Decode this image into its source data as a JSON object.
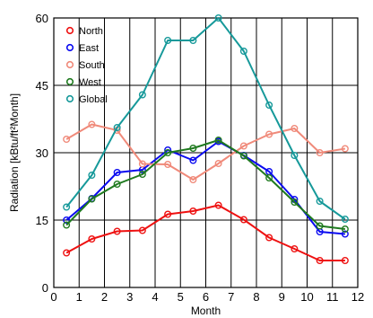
{
  "chart_data": {
    "type": "line",
    "xlabel": "Month",
    "ylabel": "Radiation [kBtu/ft²Month]",
    "xlim": [
      0,
      12
    ],
    "ylim": [
      0,
      60
    ],
    "xticks": [
      0,
      1,
      2,
      3,
      4,
      5,
      6,
      7,
      8,
      9,
      10,
      11,
      12
    ],
    "yticks": [
      0,
      15,
      30,
      45,
      60
    ],
    "grid": true,
    "legend_position": "top-left",
    "x": [
      0.5,
      1.5,
      2.5,
      3.5,
      4.5,
      5.5,
      6.5,
      7.5,
      8.5,
      9.5,
      10.5,
      11.5
    ],
    "series": [
      {
        "name": "North",
        "color": "#ee1111",
        "values": [
          7.7,
          10.8,
          12.5,
          12.7,
          16.3,
          17.0,
          18.3,
          15.1,
          11.1,
          8.6,
          6.0,
          6.0
        ]
      },
      {
        "name": "East",
        "color": "#0a0af0",
        "values": [
          15.0,
          19.8,
          25.6,
          26.2,
          30.6,
          28.3,
          32.5,
          29.4,
          25.8,
          19.6,
          12.4,
          11.9
        ]
      },
      {
        "name": "South",
        "color": "#f08a7a",
        "values": [
          33.0,
          36.3,
          35.0,
          27.5,
          27.4,
          24.0,
          27.6,
          31.5,
          34.1,
          35.4,
          30.0,
          30.9
        ]
      },
      {
        "name": "West",
        "color": "#1f7a1f",
        "values": [
          13.9,
          19.7,
          23.0,
          25.2,
          30.0,
          31.0,
          32.8,
          29.3,
          24.4,
          19.0,
          13.7,
          13.0
        ]
      },
      {
        "name": "Global",
        "color": "#16999a",
        "values": [
          17.9,
          25.0,
          35.6,
          42.9,
          55.0,
          55.0,
          60.0,
          52.6,
          40.6,
          29.4,
          19.2,
          15.2
        ]
      }
    ]
  }
}
